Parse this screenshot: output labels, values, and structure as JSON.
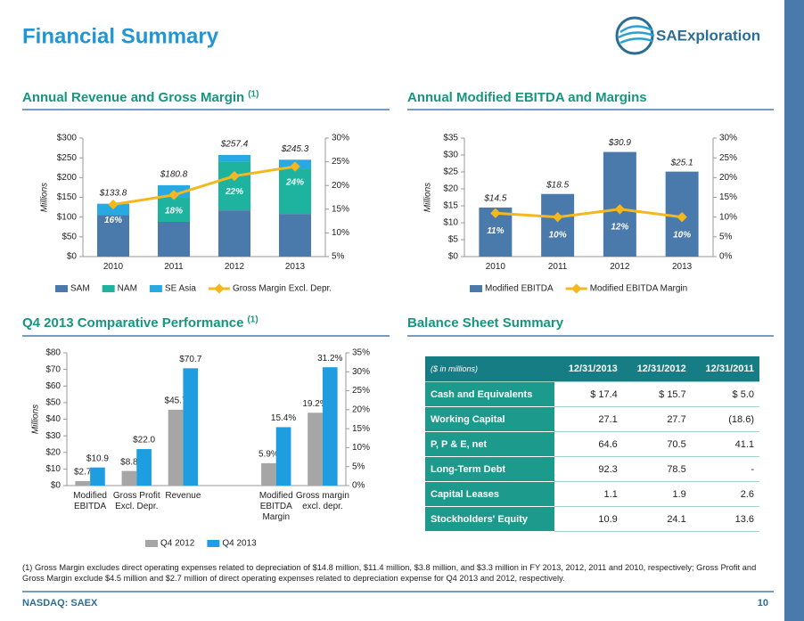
{
  "header": {
    "title": "Financial Summary",
    "logo": "SAExploration"
  },
  "chart_data": [
    {
      "type": "combo",
      "title": "Annual Revenue and Gross Margin",
      "title_note": "(1)",
      "ylabel": "Millions",
      "stacked": true,
      "categories": [
        "2010",
        "2011",
        "2012",
        "2013"
      ],
      "series": [
        {
          "name": "SAM",
          "type": "bar",
          "color": "#4a7aab",
          "values": [
            105,
            88,
            117,
            108
          ]
        },
        {
          "name": "NAM",
          "type": "bar",
          "color": "#1db39e",
          "values": [
            0,
            63,
            124,
            113
          ]
        },
        {
          "name": "SE Asia",
          "type": "bar",
          "color": "#29a9e1",
          "values": [
            28.8,
            29.8,
            16.4,
            24.3
          ]
        },
        {
          "name": "Gross Margin Excl. Depr.",
          "type": "line",
          "axis": "y2",
          "color": "#f4b81e",
          "values": [
            16,
            18,
            22,
            24
          ],
          "value_labels": [
            "16%",
            "18%",
            "22%",
            "24%"
          ]
        }
      ],
      "totals": [
        133.8,
        180.8,
        257.4,
        245.3
      ],
      "total_labels": [
        "$133.8",
        "$180.8",
        "$257.4",
        "$245.3"
      ],
      "ylim": [
        0,
        300
      ],
      "yticks": [
        {
          "value": 0,
          "label": "$0"
        },
        {
          "value": 50,
          "label": "$50"
        },
        {
          "value": 100,
          "label": "$100"
        },
        {
          "value": 150,
          "label": "$150"
        },
        {
          "value": 200,
          "label": "$200"
        },
        {
          "value": 250,
          "label": "$250"
        },
        {
          "value": 300,
          "label": "$300"
        }
      ],
      "y2lim": [
        5,
        30
      ],
      "y2ticks": [
        {
          "value": 5,
          "label": "5%"
        },
        {
          "value": 10,
          "label": "10%"
        },
        {
          "value": 15,
          "label": "15%"
        },
        {
          "value": 20,
          "label": "20%"
        },
        {
          "value": 25,
          "label": "25%"
        },
        {
          "value": 30,
          "label": "30%"
        }
      ]
    },
    {
      "type": "combo",
      "title": "Annual Modified EBITDA and Margins",
      "ylabel": "Millions",
      "categories": [
        "2010",
        "2011",
        "2012",
        "2013"
      ],
      "series": [
        {
          "name": "Modified EBITDA",
          "type": "bar",
          "color": "#4a7aab",
          "values": [
            14.5,
            18.5,
            30.9,
            25.1
          ],
          "value_labels": [
            "$14.5",
            "$18.5",
            "$30.9",
            "$25.1"
          ]
        },
        {
          "name": "Modified EBITDA Margin",
          "type": "line",
          "axis": "y2",
          "color": "#f4b81e",
          "values": [
            11,
            10,
            12,
            10
          ],
          "value_labels": [
            "11%",
            "10%",
            "12%",
            "10%"
          ]
        }
      ],
      "ylim": [
        0,
        35
      ],
      "yticks": [
        {
          "value": 0,
          "label": "$0"
        },
        {
          "value": 5,
          "label": "$5"
        },
        {
          "value": 10,
          "label": "$10"
        },
        {
          "value": 15,
          "label": "$15"
        },
        {
          "value": 20,
          "label": "$20"
        },
        {
          "value": 25,
          "label": "$25"
        },
        {
          "value": 30,
          "label": "$30"
        },
        {
          "value": 35,
          "label": "$35"
        }
      ],
      "y2lim": [
        0,
        30
      ],
      "y2ticks": [
        {
          "value": 0,
          "label": "0%"
        },
        {
          "value": 5,
          "label": "5%"
        },
        {
          "value": 10,
          "label": "10%"
        },
        {
          "value": 15,
          "label": "15%"
        },
        {
          "value": 20,
          "label": "20%"
        },
        {
          "value": 25,
          "label": "25%"
        },
        {
          "value": 30,
          "label": "30%"
        }
      ]
    },
    {
      "type": "bar",
      "title": "Q4 2013 Comparative Performance",
      "title_note": "(1)",
      "ylabel": "Millions",
      "categories": [
        "Modified EBITDA",
        "Gross Profit Excl. Depr.",
        "Revenue",
        null,
        "Modified EBITDA Margin",
        "Gross margin excl. depr."
      ],
      "axes": [
        "y",
        "y",
        "y",
        null,
        "y2",
        "y2"
      ],
      "series": [
        {
          "name": "Q4 2012",
          "color": "#a6a6a6",
          "values": [
            2.7,
            8.8,
            45.7,
            null,
            5.9,
            19.2
          ],
          "value_labels": [
            "$2.7",
            "$8.8",
            "$45.7",
            null,
            "5.9%",
            "19.2%"
          ]
        },
        {
          "name": "Q4 2013",
          "color": "#1e9ee0",
          "values": [
            10.9,
            22.0,
            70.7,
            null,
            15.4,
            31.2
          ],
          "value_labels": [
            "$10.9",
            "$22.0",
            "$70.7",
            null,
            "15.4%",
            "31.2%"
          ]
        }
      ],
      "ylim": [
        0,
        80
      ],
      "yticks": [
        {
          "value": 0,
          "label": "$0"
        },
        {
          "value": 10,
          "label": "$10"
        },
        {
          "value": 20,
          "label": "$20"
        },
        {
          "value": 30,
          "label": "$30"
        },
        {
          "value": 40,
          "label": "$40"
        },
        {
          "value": 50,
          "label": "$50"
        },
        {
          "value": 60,
          "label": "$60"
        },
        {
          "value": 70,
          "label": "$70"
        },
        {
          "value": 80,
          "label": "$80"
        }
      ],
      "y2lim": [
        0,
        35
      ],
      "y2ticks": [
        {
          "value": 0,
          "label": "0%"
        },
        {
          "value": 5,
          "label": "5%"
        },
        {
          "value": 10,
          "label": "10%"
        },
        {
          "value": 15,
          "label": "15%"
        },
        {
          "value": 20,
          "label": "20%"
        },
        {
          "value": 25,
          "label": "25%"
        },
        {
          "value": 30,
          "label": "30%"
        },
        {
          "value": 35,
          "label": "35%"
        }
      ]
    }
  ],
  "table": {
    "title": "Balance Sheet Summary",
    "unit_note": "($ in millions)",
    "columns": [
      "12/31/2013",
      "12/31/2012",
      "12/31/2011"
    ],
    "rows": [
      [
        "Cash and Equivalents",
        "$ 17.4",
        "$ 15.7",
        "$ 5.0"
      ],
      [
        "Working Capital",
        "27.1",
        "27.7",
        "(18.6)"
      ],
      [
        "P, P & E, net",
        "64.6",
        "70.5",
        "41.1"
      ],
      [
        "Long-Term Debt",
        "92.3",
        "78.5",
        "-"
      ],
      [
        "Capital Leases",
        "1.1",
        "1.9",
        "2.6"
      ],
      [
        "Stockholders' Equity",
        "10.9",
        "24.1",
        "13.6"
      ]
    ]
  },
  "footnote": "(1) Gross Margin excludes direct operating expenses related to depreciation of $14.8 million, $11.4 million, $3.8 million, and $3.3 million in FY 2013, 2012, 2011 and 2010, respectively; Gross Profit and Gross Margin exclude $4.5 million and $2.7 million of direct operating expenses related to depreciation expense for Q4 2013 and 2012, respectively.",
  "footer": {
    "ticker": "NASDAQ: SAEX",
    "page": "10"
  }
}
